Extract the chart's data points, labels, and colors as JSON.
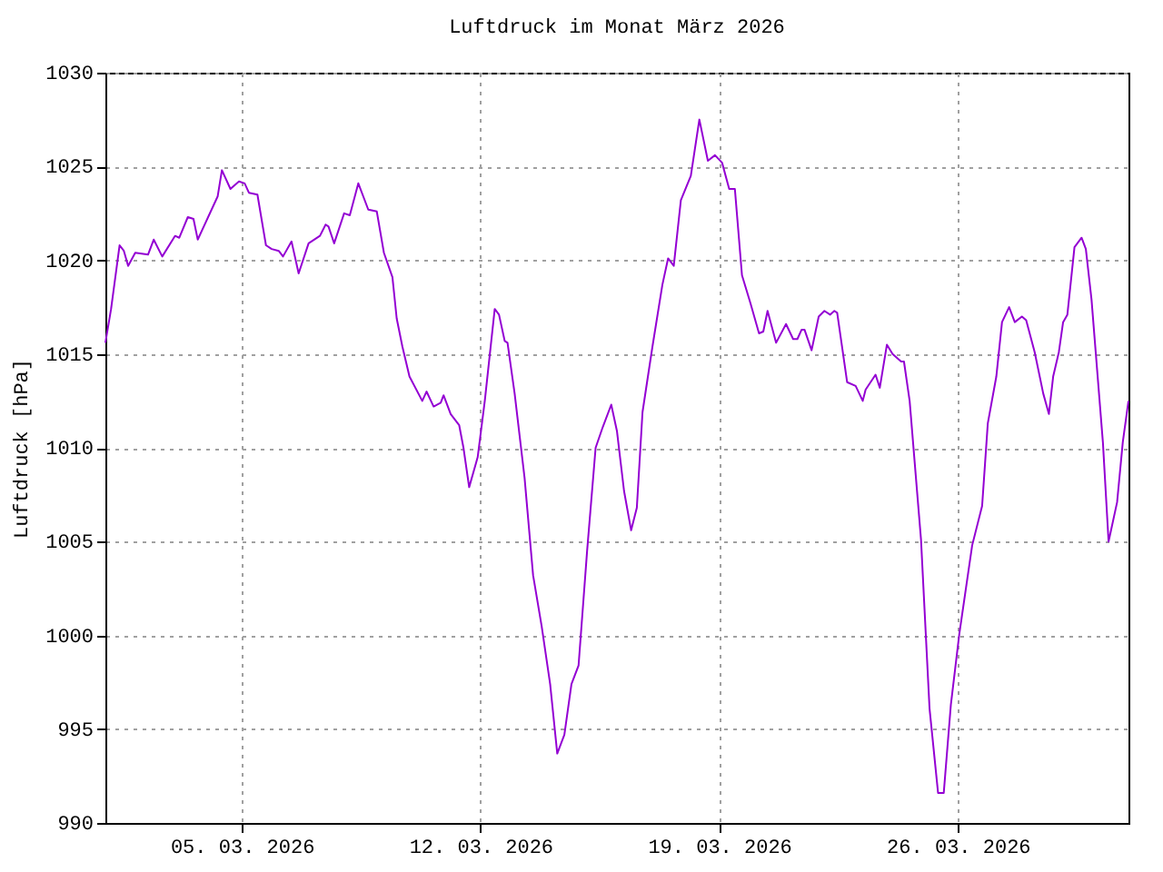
{
  "chart_data": {
    "type": "line",
    "title": "Luftdruck im Monat März 2026",
    "ylabel": "Luftdruck [hPa]",
    "x": [
      "2026-03-01T00:00",
      "2026-03-01T04:00",
      "2026-03-01T10:00",
      "2026-03-01T13:00",
      "2026-03-01T16:00",
      "2026-03-01T21:00",
      "2026-03-02T06:00",
      "2026-03-02T10:00",
      "2026-03-02T16:00",
      "2026-03-03T01:00",
      "2026-03-03T04:00",
      "2026-03-03T10:00",
      "2026-03-03T14:00",
      "2026-03-03T17:00",
      "2026-03-04T07:00",
      "2026-03-04T10:00",
      "2026-03-04T16:00",
      "2026-03-04T22:00",
      "2026-03-05T02:00",
      "2026-03-05T05:00",
      "2026-03-05T11:00",
      "2026-03-05T17:00",
      "2026-03-05T21:00",
      "2026-03-06T02:00",
      "2026-03-06T05:00",
      "2026-03-06T11:00",
      "2026-03-06T16:00",
      "2026-03-06T23:00",
      "2026-03-07T07:00",
      "2026-03-07T11:00",
      "2026-03-07T13:00",
      "2026-03-07T17:00",
      "2026-03-08T00:00",
      "2026-03-08T04:00",
      "2026-03-08T10:00",
      "2026-03-08T17:00",
      "2026-03-08T23:00",
      "2026-03-09T04:00",
      "2026-03-09T10:00",
      "2026-03-09T13:00",
      "2026-03-09T17:00",
      "2026-03-09T22:00",
      "2026-03-10T07:00",
      "2026-03-10T10:00",
      "2026-03-10T15:00",
      "2026-03-10T20:00",
      "2026-03-10T22:00",
      "2026-03-11T03:00",
      "2026-03-11T09:00",
      "2026-03-11T12:00",
      "2026-03-11T16:00",
      "2026-03-11T22:00",
      "2026-03-12T03:00",
      "2026-03-12T10:00",
      "2026-03-12T13:00",
      "2026-03-12T17:00",
      "2026-03-12T19:00",
      "2026-03-13T00:00",
      "2026-03-13T07:00",
      "2026-03-13T13:00",
      "2026-03-13T19:00",
      "2026-03-14T01:00",
      "2026-03-14T06:00",
      "2026-03-14T11:00",
      "2026-03-14T16:00",
      "2026-03-14T21:00",
      "2026-03-15T03:00",
      "2026-03-15T09:00",
      "2026-03-15T14:00",
      "2026-03-15T20:00",
      "2026-03-16T00:00",
      "2026-03-16T05:00",
      "2026-03-16T10:00",
      "2026-03-16T14:00",
      "2026-03-16T18:00",
      "2026-03-17T01:00",
      "2026-03-17T08:00",
      "2026-03-17T12:00",
      "2026-03-17T16:00",
      "2026-03-17T21:00",
      "2026-03-18T04:00",
      "2026-03-18T10:00",
      "2026-03-18T16:00",
      "2026-03-18T21:00",
      "2026-03-19T02:00",
      "2026-03-19T07:00",
      "2026-03-19T11:00",
      "2026-03-19T16:00",
      "2026-03-19T22:00",
      "2026-03-20T04:00",
      "2026-03-20T07:00",
      "2026-03-20T10:00",
      "2026-03-20T16:00",
      "2026-03-20T23:00",
      "2026-03-21T04:00",
      "2026-03-21T07:00",
      "2026-03-21T10:00",
      "2026-03-21T12:00",
      "2026-03-21T17:00",
      "2026-03-21T22:00",
      "2026-03-22T02:00",
      "2026-03-22T06:00",
      "2026-03-22T09:00",
      "2026-03-22T11:00",
      "2026-03-22T18:00",
      "2026-03-23T00:00",
      "2026-03-23T05:00",
      "2026-03-23T07:00",
      "2026-03-23T14:00",
      "2026-03-23T17:00",
      "2026-03-23T22:00",
      "2026-03-24T02:00",
      "2026-03-24T08:00",
      "2026-03-24T10:00",
      "2026-03-24T14:00",
      "2026-03-24T22:00",
      "2026-03-25T04:00",
      "2026-03-25T10:00",
      "2026-03-25T14:00",
      "2026-03-25T19:00",
      "2026-03-26T01:00",
      "2026-03-26T10:00",
      "2026-03-26T17:00",
      "2026-03-26T21:00",
      "2026-03-27T03:00",
      "2026-03-27T07:00",
      "2026-03-27T12:00",
      "2026-03-27T16:00",
      "2026-03-27T21:00",
      "2026-03-28T00:00",
      "2026-03-28T06:00",
      "2026-03-28T12:00",
      "2026-03-28T16:00",
      "2026-03-28T19:00",
      "2026-03-28T23:00",
      "2026-03-29T02:00",
      "2026-03-29T05:00",
      "2026-03-29T10:00",
      "2026-03-29T15:00",
      "2026-03-29T18:00",
      "2026-03-29T22:00",
      "2026-03-30T06:00",
      "2026-03-30T10:00",
      "2026-03-30T16:00",
      "2026-03-30T20:00",
      "2026-03-31T00:00"
    ],
    "series": [
      {
        "color": "#9400d3",
        "values": [
          1015.6,
          1017.4,
          1020.8,
          1020.5,
          1019.7,
          1020.4,
          1020.3,
          1021.1,
          1020.2,
          1021.3,
          1021.2,
          1022.3,
          1022.2,
          1021.1,
          1023.4,
          1024.8,
          1023.8,
          1024.2,
          1024.1,
          1023.6,
          1023.5,
          1020.8,
          1020.6,
          1020.5,
          1020.2,
          1021.0,
          1019.3,
          1020.9,
          1021.3,
          1021.9,
          1021.8,
          1020.9,
          1022.5,
          1022.4,
          1024.1,
          1022.7,
          1022.6,
          1020.4,
          1019.1,
          1016.9,
          1015.4,
          1013.8,
          1012.5,
          1013.0,
          1012.2,
          1012.4,
          1012.8,
          1011.8,
          1011.2,
          1010.0,
          1007.9,
          1009.5,
          1012.5,
          1017.4,
          1017.1,
          1015.7,
          1015.6,
          1012.9,
          1008.4,
          1003.2,
          1000.5,
          997.4,
          993.7,
          994.7,
          997.4,
          998.4,
          1004.5,
          1010.0,
          1011.1,
          1012.3,
          1010.9,
          1007.7,
          1005.6,
          1006.8,
          1011.9,
          1015.4,
          1018.7,
          1020.1,
          1019.7,
          1023.2,
          1024.5,
          1027.5,
          1025.3,
          1025.6,
          1025.2,
          1023.8,
          1023.8,
          1019.2,
          1017.7,
          1016.1,
          1016.2,
          1017.3,
          1015.6,
          1016.6,
          1015.8,
          1015.8,
          1016.3,
          1016.3,
          1015.2,
          1017.0,
          1017.3,
          1017.1,
          1017.3,
          1017.2,
          1013.5,
          1013.3,
          1012.5,
          1013.1,
          1013.9,
          1013.2,
          1015.5,
          1015.0,
          1014.6,
          1014.6,
          1012.5,
          1005.1,
          996.1,
          991.6,
          991.6,
          996.3,
          1000.1,
          1004.8,
          1006.9,
          1011.3,
          1013.8,
          1016.7,
          1017.5,
          1016.7,
          1017.0,
          1016.8,
          1015.1,
          1012.9,
          1011.8,
          1013.8,
          1015.1,
          1016.7,
          1017.1,
          1020.7,
          1021.2,
          1020.6,
          1017.9,
          1010.3,
          1005.0,
          1007.1,
          1010.3,
          1012.5
        ]
      }
    ],
    "xlim": [
      "2026-03-01",
      "2026-03-31"
    ],
    "xticks": [
      {
        "value": "2026-03-05",
        "label": "05. 03. 2026"
      },
      {
        "value": "2026-03-12",
        "label": "12. 03. 2026"
      },
      {
        "value": "2026-03-19",
        "label": "19. 03. 2026"
      },
      {
        "value": "2026-03-26",
        "label": "26. 03. 2026"
      }
    ],
    "ylim": [
      990,
      1030
    ],
    "yticks": [
      990,
      995,
      1000,
      1005,
      1010,
      1015,
      1020,
      1025,
      1030
    ],
    "grid": true,
    "line_style": "solid",
    "marker": "none"
  }
}
